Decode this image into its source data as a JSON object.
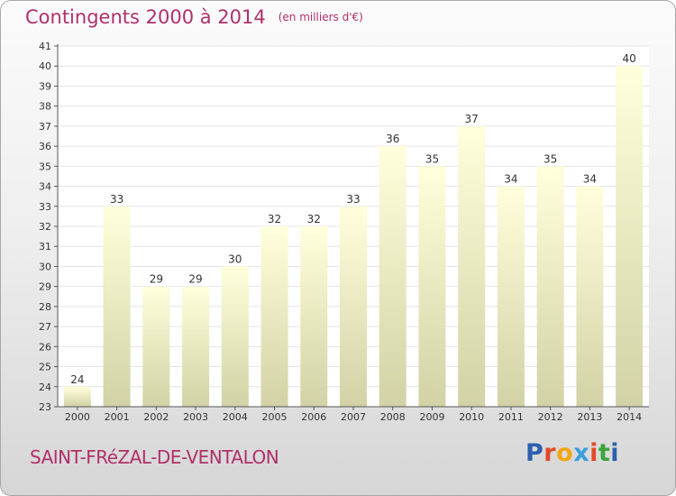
{
  "header": {
    "title": "Contingents 2000 à 2014",
    "subtitle": "(en milliers d'€)"
  },
  "footer": {
    "commune": "SAINT-FRéZAL-DE-VENTALON"
  },
  "logo": {
    "text": "Proxiti",
    "letter_colors": [
      "#2d5fae",
      "#e24a2a",
      "#f2a614",
      "#3a9fdc",
      "#e24a2a",
      "#3aa63a",
      "#2d5fae"
    ]
  },
  "colors": {
    "title": "#b0306a",
    "bar_top": "#ffffdc",
    "bar_bottom": "#d2d2a6",
    "axis": "#555555",
    "grid": "#e4e4e4"
  },
  "chart_data": {
    "type": "bar",
    "title": "Contingents 2000 à 2014",
    "subtitle": "(en milliers d'€)",
    "xlabel": "",
    "ylabel": "",
    "categories": [
      "2000",
      "2001",
      "2002",
      "2003",
      "2004",
      "2005",
      "2006",
      "2007",
      "2008",
      "2009",
      "2010",
      "2011",
      "2012",
      "2013",
      "2014"
    ],
    "values": [
      24,
      33,
      29,
      29,
      30,
      32,
      32,
      33,
      36,
      35,
      37,
      34,
      35,
      34,
      40
    ],
    "ylim": [
      23,
      41
    ],
    "yticks": [
      23,
      24,
      25,
      26,
      27,
      28,
      29,
      30,
      31,
      32,
      33,
      34,
      35,
      36,
      37,
      38,
      39,
      40,
      41
    ],
    "grid": true,
    "data_labels": true
  }
}
